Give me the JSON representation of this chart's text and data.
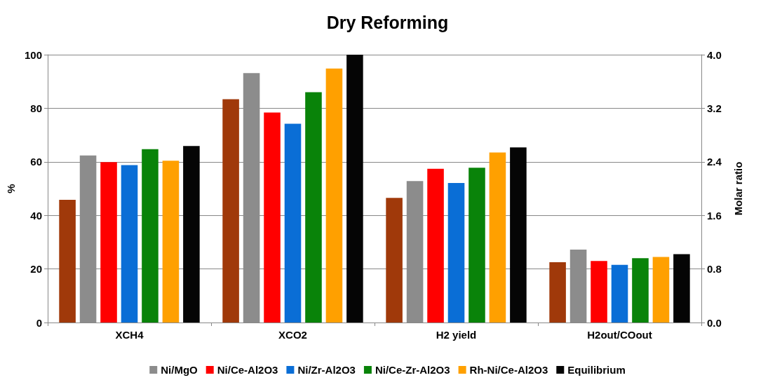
{
  "chart_data": {
    "type": "bar",
    "title": "Dry Reforming",
    "ylabel": "%",
    "y2label": "Molar ratio",
    "categories": [
      "XCH4",
      "XCO2",
      "H2 yield",
      "H2out/COout"
    ],
    "ylim": [
      0,
      100
    ],
    "yticks": [
      0,
      20,
      40,
      60,
      80,
      100
    ],
    "y2lim": [
      0,
      4
    ],
    "y2ticks": [
      {
        "value": 0,
        "label": "0.0"
      },
      {
        "value": 0.8,
        "label": "0.8"
      },
      {
        "value": 1.6,
        "label": "1.6"
      },
      {
        "value": 2.4,
        "label": "2.4"
      },
      {
        "value": 3.2,
        "label": "3.2"
      },
      {
        "value": 4,
        "label": "4.0"
      }
    ],
    "grid": "y",
    "legend": "bottom",
    "series": [
      {
        "color": "#a0390a",
        "values": [
          45.8,
          83.4,
          46.5,
          null
        ]
      },
      {
        "name": "Ni/MgO",
        "color": "#8c8c8c",
        "values": [
          62.4,
          93.1,
          52.8,
          null
        ]
      },
      {
        "name": "Ni/Ce-Al2O3",
        "color": "#ff0000",
        "values": [
          59.9,
          78.4,
          57.4,
          null
        ]
      },
      {
        "name": "Ni/Zr-Al2O3",
        "color": "#0a6ed6",
        "values": [
          58.8,
          74.2,
          52.1,
          null
        ]
      },
      {
        "name": "Ni/Ce-Zr-Al2O3",
        "color": "#098309",
        "values": [
          64.7,
          86.0,
          57.8,
          null
        ]
      },
      {
        "name": "Rh-Ni/Ce-Al2O3",
        "color": "#ffa000",
        "values": [
          60.4,
          94.8,
          63.5,
          null
        ]
      },
      {
        "name": "Equilibrium",
        "color": "#050505",
        "values": [
          65.9,
          100,
          65.4,
          null
        ]
      },
      {
        "axis": "y2",
        "color": "#a0390a",
        "values": [
          null,
          null,
          null,
          0.9
        ]
      },
      {
        "axis": "y2",
        "color": "#8c8c8c",
        "values": [
          null,
          null,
          null,
          1.09
        ]
      },
      {
        "axis": "y2",
        "color": "#ff0000",
        "values": [
          null,
          null,
          null,
          0.92
        ]
      },
      {
        "axis": "y2",
        "color": "#0a6ed6",
        "values": [
          null,
          null,
          null,
          0.86
        ]
      },
      {
        "axis": "y2",
        "color": "#098309",
        "values": [
          null,
          null,
          null,
          0.96
        ]
      },
      {
        "axis": "y2",
        "color": "#ffa000",
        "values": [
          null,
          null,
          null,
          0.98
        ]
      },
      {
        "axis": "y2",
        "color": "#050505",
        "values": [
          null,
          null,
          null,
          1.02
        ]
      }
    ]
  }
}
